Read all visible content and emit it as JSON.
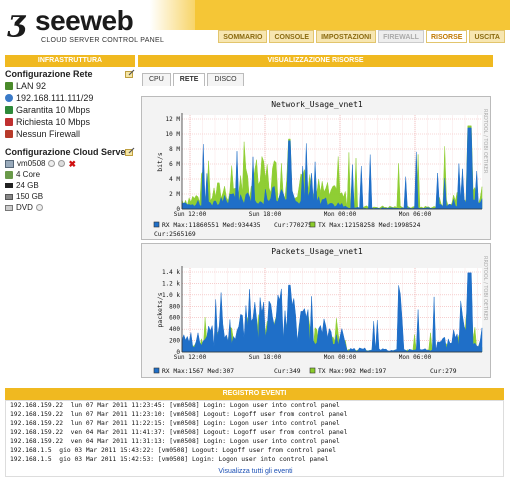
{
  "brand": {
    "logo_mark": "ʒ",
    "name": "seeweb",
    "subtitle": "CLOUD SERVER CONTROL PANEL"
  },
  "nav": {
    "tabs": [
      {
        "label": "SOMMARIO",
        "state": "normal"
      },
      {
        "label": "CONSOLE",
        "state": "normal"
      },
      {
        "label": "IMPOSTAZIONI",
        "state": "normal"
      },
      {
        "label": "FIREWALL",
        "state": "disabled"
      },
      {
        "label": "RISORSE",
        "state": "active"
      },
      {
        "label": "USCITA",
        "state": "normal"
      }
    ]
  },
  "sidebar": {
    "header": "INFRASTRUTTURA",
    "network_title": "Configurazione Rete",
    "network_items": [
      {
        "label": "LAN 92",
        "icon": "network-icon",
        "color": "#4a8a2a"
      },
      {
        "label": "192.168.111.111/29",
        "icon": "globe-icon",
        "color": "#3a7ac8"
      },
      {
        "label": "Garantita 10 Mbps",
        "icon": "speed-icon",
        "color": "#2e8a3a"
      },
      {
        "label": "Richiesta 10 Mbps",
        "icon": "speed-icon",
        "color": "#c03030"
      },
      {
        "label": "Nessun  Firewall",
        "icon": "firewall-icon",
        "color": "#b83a2a"
      }
    ],
    "cloud_title": "Configurazione Cloud Server",
    "vm_name": "vm0508",
    "cloud_items": [
      {
        "label": "4 Core",
        "icon": "cpu-icon"
      },
      {
        "label": "24 GB",
        "icon": "memory-icon"
      },
      {
        "label": "150 GB",
        "icon": "disk-icon"
      },
      {
        "label": "DVD",
        "icon": "dvd-icon"
      }
    ]
  },
  "main": {
    "header": "VISUALIZZAZIONE RISORSE",
    "subtabs": [
      {
        "label": "CPU",
        "active": false
      },
      {
        "label": "RETE",
        "active": true
      },
      {
        "label": "DISCO",
        "active": false
      }
    ]
  },
  "chart_data": [
    {
      "type": "area",
      "title": "Network_Usage_vnet1",
      "ylabel": "bit/s",
      "credit": "RRDTOOL / TOBI OETIKER",
      "ylim": [
        0,
        12500000
      ],
      "y_ticks": [
        "0",
        "2 M",
        "4 M",
        "6 M",
        "8 M",
        "10 M",
        "12 M"
      ],
      "x_ticks": [
        "Sun 12:00",
        "Sun 18:00",
        "Mon 00:00",
        "Mon 06:00"
      ],
      "series": [
        {
          "name": "RX",
          "color": "#1f6fc8",
          "stats": {
            "Max": "11860551",
            "Med": "934435",
            "Cur": "770275"
          }
        },
        {
          "name": "TX",
          "color": "#8acc2a",
          "stats": {
            "Max": "12158258",
            "Med": "1998524",
            "Cur": "2565169"
          }
        }
      ]
    },
    {
      "type": "area",
      "title": "Packets_Usage_vnet1",
      "ylabel": "packets/s",
      "credit": "RRDTOOL / TOBI OETIKER",
      "ylim": [
        0,
        1500
      ],
      "y_ticks": [
        "0",
        "200",
        "400",
        "600",
        "800",
        "1.0 k",
        "1.2 k",
        "1.4 k"
      ],
      "x_ticks": [
        "Sun 12:00",
        "Sun 18:00",
        "Mon 00:00",
        "Mon 06:00"
      ],
      "series": [
        {
          "name": "RX",
          "color": "#1f6fc8",
          "stats": {
            "Max": "1567",
            "Med": "307",
            "Cur": "349"
          }
        },
        {
          "name": "TX",
          "color": "#8acc2a",
          "stats": {
            "Max": "902",
            "Med": "197",
            "Cur": "279"
          }
        }
      ]
    }
  ],
  "events": {
    "header": "REGISTRO EVENTI",
    "lines": [
      "192.168.159.22  lun 07 Mar 2011 11:23:45: [vm0508] Login: Logon user into control panel",
      "192.168.159.22  lun 07 Mar 2011 11:23:10: [vm0508] Logout: Logoff user from control panel",
      "192.168.159.22  lun 07 Mar 2011 11:22:15: [vm0508] Login: Logon user into control panel",
      "192.168.159.22  ven 04 Mar 2011 11:41:37: [vm0508] Logout: Logoff user from control panel",
      "192.168.159.22  ven 04 Mar 2011 11:31:13: [vm0508] Login: Logon user into control panel",
      "192.168.1.5  gio 03 Mar 2011 15:43:22: [vm0508] Logout: Logoff user from control panel",
      "192.168.1.5  gio 03 Mar 2011 15:42:53: [vm0508] Login: Logon user into control panel"
    ],
    "link": "Visualizza tutti gli eventi"
  }
}
